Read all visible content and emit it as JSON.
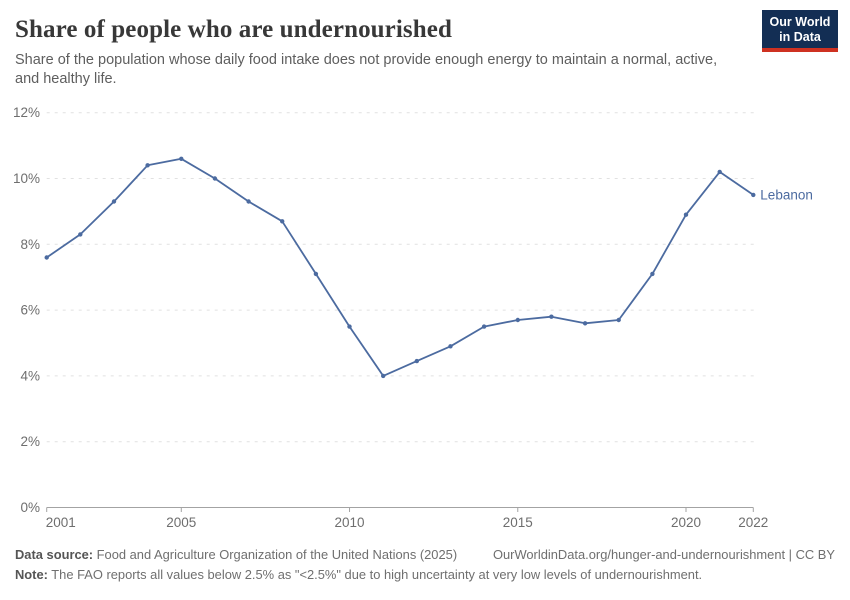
{
  "header": {
    "title": "Share of people who are undernourished",
    "subtitle": "Share of the population whose daily food intake does not provide enough energy to maintain a normal, active, and healthy life.",
    "logo": {
      "line1": "Our World",
      "line2": "in Data"
    }
  },
  "chart_data": {
    "type": "line",
    "title": "Share of people who are undernourished",
    "x": [
      2001,
      2002,
      2003,
      2004,
      2005,
      2006,
      2007,
      2008,
      2009,
      2010,
      2011,
      2012,
      2013,
      2014,
      2015,
      2016,
      2017,
      2018,
      2019,
      2020,
      2021,
      2022
    ],
    "series": [
      {
        "name": "Lebanon",
        "color": "#4C6BA0",
        "values": [
          7.6,
          8.3,
          9.3,
          10.4,
          10.6,
          10.0,
          9.3,
          8.7,
          7.1,
          5.5,
          4.0,
          4.45,
          4.9,
          5.5,
          5.7,
          5.8,
          5.6,
          5.7,
          7.1,
          8.9,
          10.2,
          9.5
        ]
      }
    ],
    "xlim": [
      2001,
      2022
    ],
    "ylim": [
      0,
      12
    ],
    "xticks": [
      2001,
      2005,
      2010,
      2015,
      2020,
      2022
    ],
    "yticks": [
      0,
      2,
      4,
      6,
      8,
      10,
      12
    ],
    "ytick_labels": [
      "0%",
      "2%",
      "4%",
      "6%",
      "8%",
      "10%",
      "12%"
    ],
    "xlabel": "",
    "ylabel": "",
    "grid": "horizontal-dashed",
    "legend_position": "end-of-line-label"
  },
  "footer": {
    "datasource_label": "Data source:",
    "datasource_text": " Food and Agriculture Organization of the United Nations (2025)",
    "link_text": "OurWorldinData.org/hunger-and-undernourishment | CC BY",
    "note_label": "Note:",
    "note_text": " The FAO reports all values below 2.5% as \"<2.5%\" due to high uncertainty at very low levels of undernourishment."
  },
  "colors": {
    "line": "#4C6BA0",
    "grid": "#e1e1e1",
    "axis": "#a3a3a3",
    "tick_label": "#6e6e6e",
    "logo_bg": "#132E54",
    "logo_red": "#CE3121"
  }
}
